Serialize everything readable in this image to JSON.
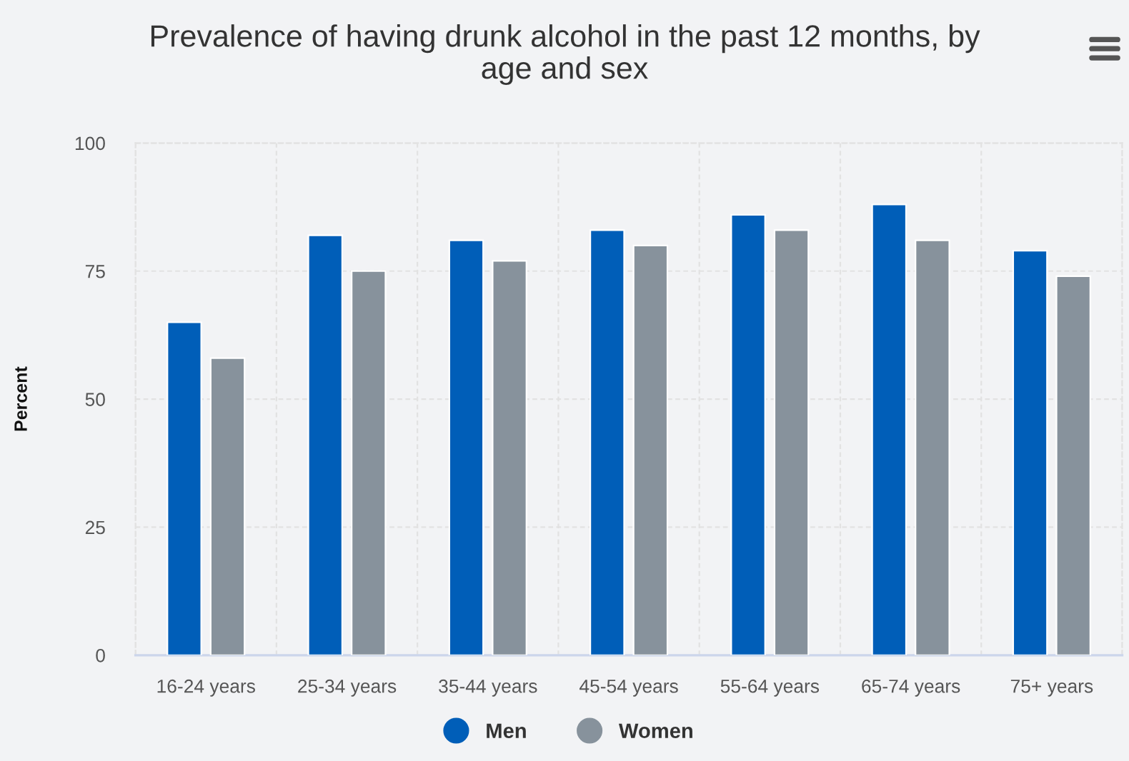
{
  "chart_data": {
    "type": "bar",
    "title": "Prevalence of having drunk alcohol in the past 12 months, by age and sex",
    "ylabel": "Percent",
    "categories": [
      "16-24 years",
      "25-34 years",
      "35-44 years",
      "45-54 years",
      "55-64 years",
      "65-74 years",
      "75+ years"
    ],
    "series": [
      {
        "name": "Men",
        "color": "#005eb8",
        "values": [
          65,
          82,
          81,
          83,
          86,
          88,
          79
        ]
      },
      {
        "name": "Women",
        "color": "#87929c",
        "values": [
          58,
          75,
          77,
          80,
          83,
          81,
          74
        ]
      }
    ],
    "ylim": [
      0,
      100
    ],
    "yticks": [
      0,
      25,
      50,
      75,
      100
    ],
    "grid": true,
    "legend": "bottom"
  }
}
